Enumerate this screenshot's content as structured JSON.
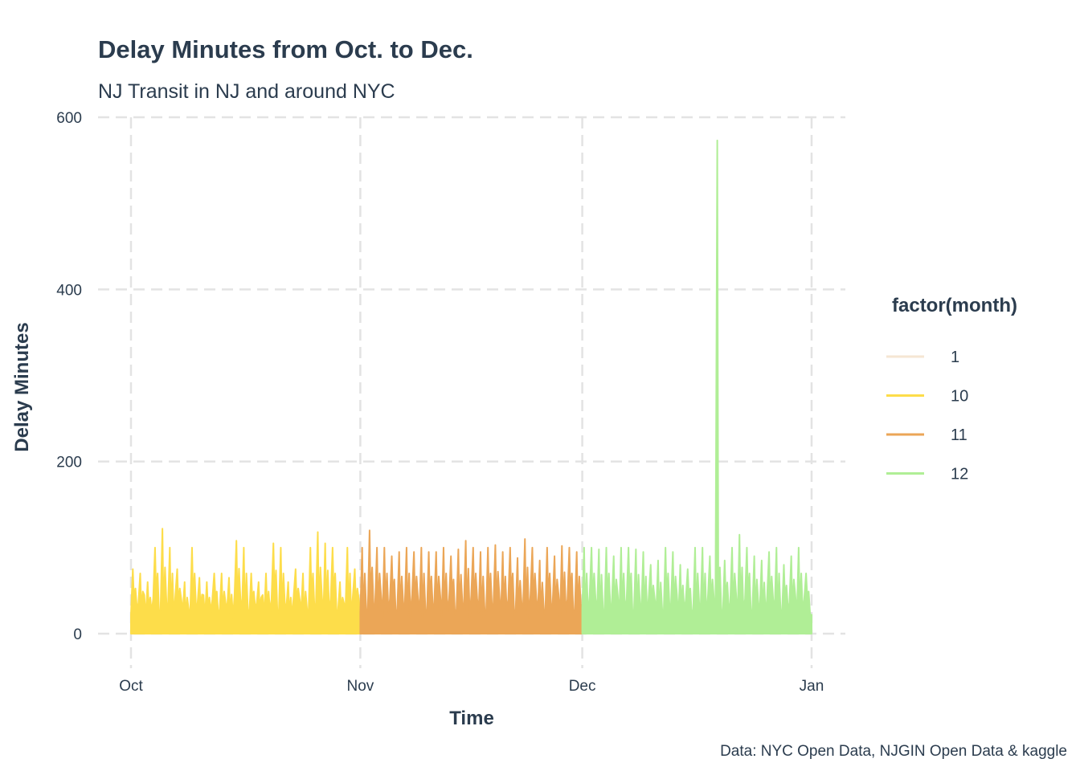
{
  "chart_data": {
    "type": "line",
    "title": "Delay Minutes from Oct. to Dec.",
    "subtitle": "NJ Transit in NJ and around NYC",
    "xlabel": "Time",
    "ylabel": "Delay Minutes",
    "caption": "Data: NYC Open Data, NJGIN Open Data & kaggle",
    "ylim": [
      0,
      600
    ],
    "yticks": [
      0,
      200,
      400,
      600
    ],
    "ytick_labels": [
      "0",
      "200",
      "400",
      "600"
    ],
    "xticks": [
      "Oct",
      "Nov",
      "Dec",
      "Jan"
    ],
    "grid": true,
    "legend": {
      "title": "factor(month)",
      "position": "right"
    },
    "series": [
      {
        "name": "1",
        "color": "#F5E6D3",
        "daily_peak_values": []
      },
      {
        "name": "10",
        "color": "#FDDD4A",
        "daily_peak_values": [
          75,
          70,
          60,
          100,
          122,
          100,
          75,
          60,
          100,
          65,
          60,
          70,
          70,
          65,
          108,
          100,
          70,
          60,
          70,
          105,
          100,
          60,
          75,
          70,
          100,
          118,
          105,
          100,
          60,
          100,
          75
        ]
      },
      {
        "name": "11",
        "color": "#EBA657",
        "daily_peak_values": [
          100,
          120,
          100,
          100,
          90,
          95,
          100,
          95,
          100,
          95,
          95,
          100,
          90,
          98,
          108,
          100,
          95,
          100,
          103,
          95,
          100,
          88,
          110,
          100,
          85,
          100,
          90,
          102,
          100,
          95
        ]
      },
      {
        "name": "12",
        "color": "#B0EE96",
        "daily_peak_values": [
          100,
          100,
          98,
          100,
          90,
          100,
          100,
          98,
          95,
          80,
          85,
          100,
          95,
          80,
          75,
          100,
          100,
          90,
          573,
          85,
          100,
          115,
          100,
          90,
          85,
          95,
          100,
          80,
          90,
          100,
          70
        ]
      }
    ]
  }
}
